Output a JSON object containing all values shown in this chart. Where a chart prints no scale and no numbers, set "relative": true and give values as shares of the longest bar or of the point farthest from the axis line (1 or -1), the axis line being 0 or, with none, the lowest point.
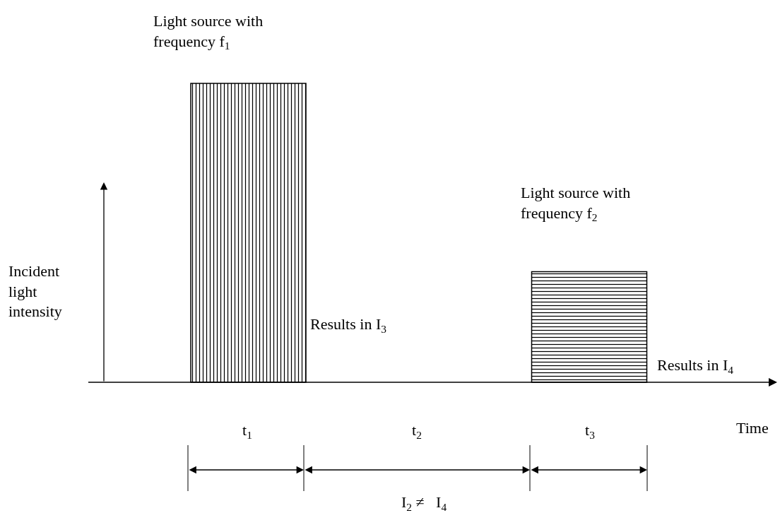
{
  "chart_data": {
    "type": "bar",
    "relative": true,
    "categories": [
      null,
      null
    ],
    "series": [
      {
        "values": [
          1,
          0.37
        ],
        "color": "#000000"
      }
    ],
    "xlabel": "Time",
    "ylabel": "Incident\nlight\nintensity",
    "annotations": [
      "Light source with\nfrequency f$_{1}$",
      "Results in I$_{3}$",
      "Light source with\nfrequency f$_{2}$",
      "Results in I$_{4}$",
      "t$_{1}$",
      "t$_{2}$",
      "t$_{3}$",
      "I$_{2}$ ≠   I$_{4}$"
    ]
  }
}
